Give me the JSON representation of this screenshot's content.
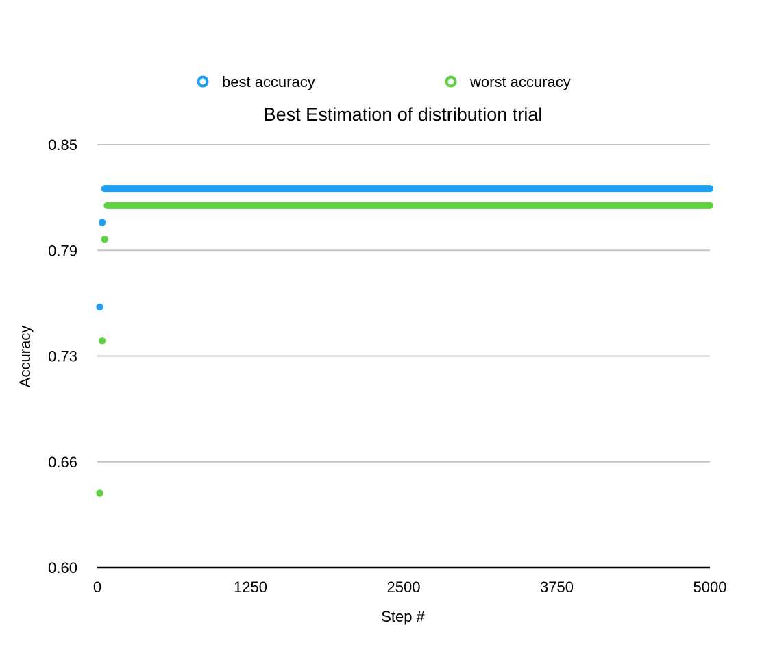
{
  "chart_data": {
    "type": "scatter",
    "title": "Best Estimation of distribution trial",
    "xlabel": "Step #",
    "ylabel": "Accuracy",
    "xlim": [
      0,
      5000
    ],
    "ylim": [
      0.6,
      0.85
    ],
    "x_ticks": [
      "0",
      "1250",
      "2500",
      "3750",
      "5000"
    ],
    "y_ticks": [
      "0.60",
      "0.66",
      "0.73",
      "0.79",
      "0.85"
    ],
    "y_tick_values": [
      0.6,
      0.66,
      0.73,
      0.79,
      0.85
    ],
    "grid": true,
    "legend_position": "top",
    "series": [
      {
        "name": "best accuracy",
        "color": "#1e9ff2",
        "points": [
          [
            20,
            0.754
          ],
          [
            40,
            0.804
          ]
        ],
        "plateau": {
          "x_start": 60,
          "x_end": 5000,
          "y": 0.824
        }
      },
      {
        "name": "worst accuracy",
        "color": "#5fd142",
        "points": [
          [
            20,
            0.644
          ],
          [
            40,
            0.734
          ],
          [
            60,
            0.794
          ]
        ],
        "plateau": {
          "x_start": 80,
          "x_end": 5000,
          "y": 0.814
        }
      }
    ]
  }
}
